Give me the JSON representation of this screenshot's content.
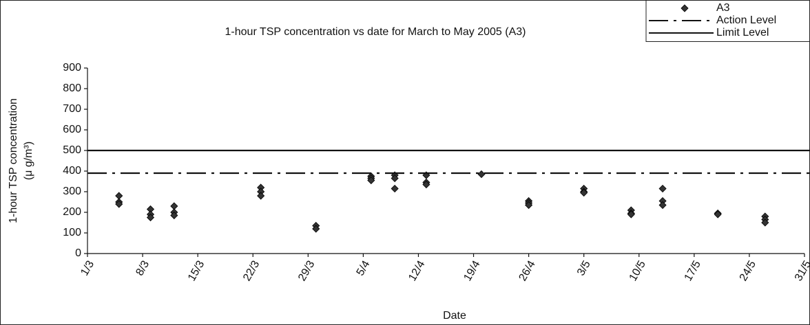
{
  "chart_data": {
    "type": "scatter",
    "title": "1-hour TSP concentration vs date for March to May 2005 (A3)",
    "x_label": "Date",
    "y_label": [
      "1-hour TSP concentration",
      "(μ g/m³)"
    ],
    "xlim": [
      "1/3",
      "31/5"
    ],
    "xticks": [
      "1/3",
      "8/3",
      "15/3",
      "22/3",
      "29/3",
      "5/4",
      "12/4",
      "19/4",
      "26/4",
      "3/5",
      "10/5",
      "17/5",
      "24/5",
      "31/5"
    ],
    "ylim": [
      0,
      900
    ],
    "yticks": [
      0,
      100,
      200,
      300,
      400,
      500,
      600,
      700,
      800,
      900
    ],
    "series": [
      {
        "name": "A3",
        "color": "#333333",
        "marker": "diamond",
        "x": [
          "5/3",
          "5/3",
          "5/3",
          "9/3",
          "9/3",
          "9/3",
          "12/3",
          "12/3",
          "12/3",
          "23/3",
          "23/3",
          "23/3",
          "30/3",
          "30/3",
          "6/4",
          "6/4",
          "6/4",
          "9/4",
          "9/4",
          "9/4",
          "13/4",
          "13/4",
          "13/4",
          "20/4",
          "26/4",
          "26/4",
          "26/4",
          "3/5",
          "3/5",
          "3/5",
          "9/5",
          "9/5",
          "9/5",
          "13/5",
          "13/5",
          "13/5",
          "20/5",
          "20/5",
          "26/5",
          "26/5",
          "26/5"
        ],
        "values": [
          280,
          250,
          240,
          215,
          190,
          175,
          230,
          200,
          185,
          320,
          300,
          280,
          135,
          120,
          375,
          365,
          355,
          380,
          365,
          315,
          380,
          345,
          335,
          385,
          255,
          245,
          235,
          315,
          300,
          295,
          210,
          195,
          190,
          315,
          255,
          235,
          195,
          190,
          180,
          165,
          150
        ]
      },
      {
        "name": "Action Level",
        "color": "#111111",
        "style": "dash-dot",
        "value": 390
      },
      {
        "name": "Limit Level",
        "color": "#111111",
        "style": "solid",
        "value": 500
      }
    ]
  }
}
